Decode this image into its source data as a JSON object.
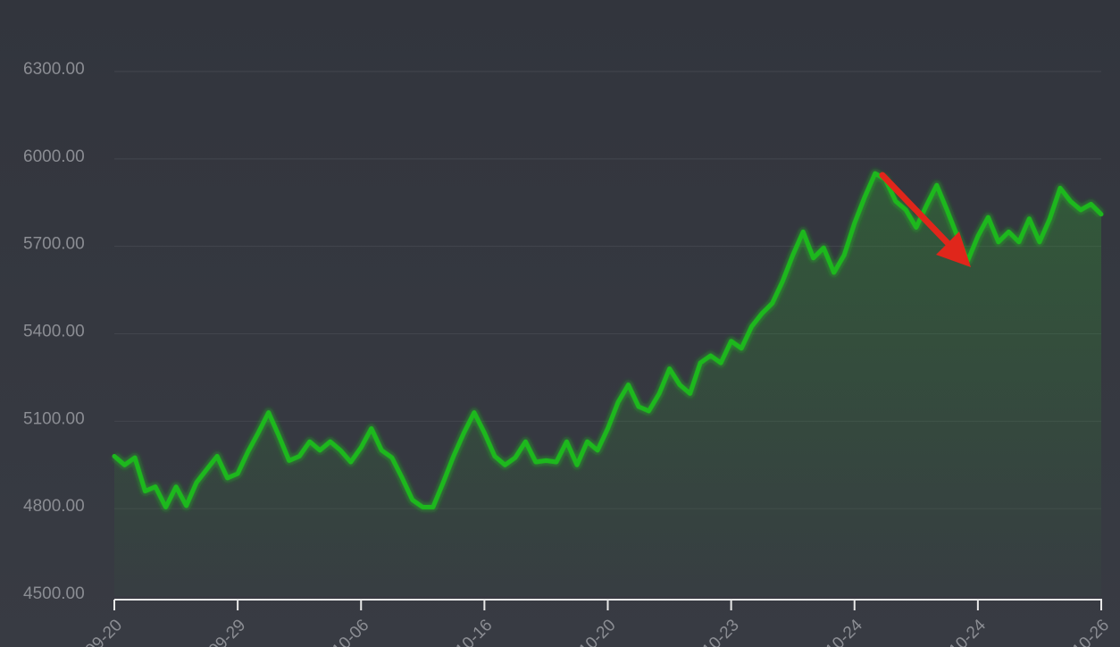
{
  "chart_data": {
    "type": "line",
    "categories": [
      "09-20",
      null,
      null,
      null,
      null,
      null,
      null,
      null,
      null,
      null,
      null,
      null,
      "09-29",
      null,
      null,
      null,
      null,
      null,
      null,
      null,
      null,
      null,
      null,
      null,
      "10-06",
      null,
      null,
      null,
      null,
      null,
      null,
      null,
      null,
      null,
      null,
      null,
      "10-16",
      null,
      null,
      null,
      null,
      null,
      null,
      null,
      null,
      null,
      null,
      null,
      "10-20",
      null,
      null,
      null,
      null,
      null,
      null,
      null,
      null,
      null,
      null,
      null,
      "10-23",
      null,
      null,
      null,
      null,
      null,
      null,
      null,
      null,
      null,
      null,
      null,
      "10-24",
      null,
      null,
      null,
      null,
      null,
      null,
      null,
      null,
      null,
      null,
      null,
      "10-24",
      null,
      null,
      null,
      null,
      null,
      null,
      null,
      null,
      null,
      null,
      null,
      "10-26"
    ],
    "series": [
      {
        "name": null,
        "color": "#1db81d",
        "values": [
          4980,
          4950,
          4975,
          4860,
          4875,
          4805,
          4875,
          4810,
          4890,
          4935,
          4980,
          4905,
          4920,
          4995,
          5060,
          5130,
          5050,
          4965,
          4980,
          5030,
          5000,
          5030,
          5000,
          4960,
          5010,
          5075,
          5000,
          4975,
          4905,
          4830,
          4805,
          4805,
          4890,
          4980,
          5060,
          5130,
          5060,
          4980,
          4950,
          4975,
          5030,
          4960,
          4965,
          4960,
          5030,
          4950,
          5030,
          5000,
          5075,
          5165,
          5225,
          5150,
          5135,
          5195,
          5280,
          5225,
          5195,
          5300,
          5325,
          5300,
          5375,
          5350,
          5425,
          5470,
          5505,
          5580,
          5670,
          5750,
          5660,
          5695,
          5610,
          5670,
          5780,
          5870,
          5950,
          5930,
          5855,
          5825,
          5765,
          5840,
          5910,
          5825,
          5735,
          5650,
          5735,
          5800,
          5715,
          5750,
          5715,
          5795,
          5715,
          5795,
          5900,
          5855,
          5825,
          5845,
          5810
        ]
      }
    ],
    "ylim": [
      4500,
      6300
    ],
    "yticks": [
      {
        "value": 4500,
        "label": "4500.00"
      },
      {
        "value": 4800,
        "label": "4800.00"
      },
      {
        "value": 5100,
        "label": "5100.00"
      },
      {
        "value": 5400,
        "label": "5400.00"
      },
      {
        "value": 5700,
        "label": "5700.00"
      },
      {
        "value": 6000,
        "label": "6000.00"
      },
      {
        "value": 6300,
        "label": "6300.00"
      }
    ],
    "grid": true,
    "area": true
  }
}
